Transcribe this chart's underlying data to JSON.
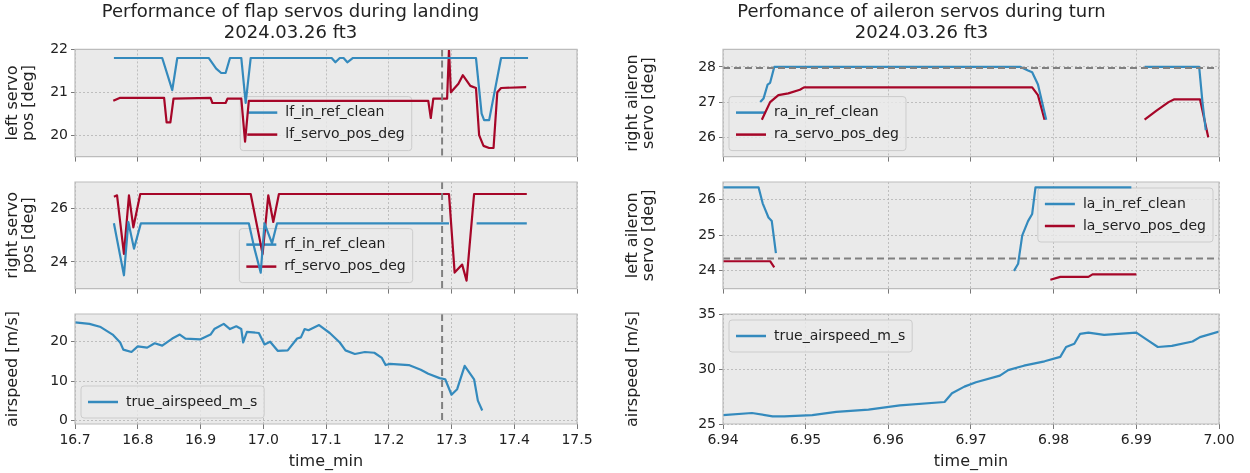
{
  "chart_data": [
    {
      "type": "line",
      "title": "Performance of flap servos during landing\n2024.03.26 ft3",
      "ylabel": "left servo\npos [deg]",
      "xlim": [
        16.7,
        17.5
      ],
      "xticks": [
        16.7,
        16.8,
        16.9,
        17,
        17.1,
        17.2,
        17.3,
        17.4,
        17.5
      ],
      "ylim": [
        19.5,
        22
      ],
      "yticks": [
        20,
        21,
        22
      ],
      "tick_labels": "y",
      "grid": true,
      "legend": "bottom",
      "ref_lines": [
        {
          "axis": "x",
          "value": 17.285,
          "color": "#808080",
          "line_style": "dashed"
        }
      ],
      "series": [
        {
          "name": "lf_in_ref_clean",
          "color": "#348abd",
          "x": [
            16.762,
            16.839,
            16.855,
            16.863,
            16.913,
            16.925,
            16.933,
            16.94,
            16.947,
            16.965,
            16.972,
            16.98,
            17.109,
            17.115,
            17.122,
            17.128,
            17.134,
            17.143,
            17.339,
            17.348,
            17.352,
            17.36,
            17.379,
            17.422
          ],
          "values": [
            21.8,
            21.8,
            21.05,
            21.8,
            21.8,
            21.55,
            21.45,
            21.45,
            21.8,
            21.8,
            20.75,
            21.8,
            21.8,
            21.7,
            21.8,
            21.8,
            21.7,
            21.8,
            21.8,
            20.5,
            20.35,
            20.35,
            21.8,
            21.8
          ]
        },
        {
          "name": "lf_servo_pos_deg",
          "color": "#a60628",
          "x": [
            16.761,
            16.772,
            16.842,
            16.846,
            16.852,
            16.857,
            16.916,
            16.919,
            16.94,
            16.943,
            16.965,
            16.971,
            16.977,
            17.263,
            17.267,
            17.271,
            17.293,
            17.296,
            17.299,
            17.311,
            17.318,
            17.33,
            17.339,
            17.344,
            17.351,
            17.36,
            17.367,
            17.373,
            17.379,
            17.419
          ],
          "values": [
            20.8,
            20.87,
            20.87,
            20.3,
            20.3,
            20.85,
            20.87,
            20.75,
            20.75,
            20.85,
            20.85,
            19.85,
            20.8,
            20.8,
            20.4,
            20.85,
            20.85,
            22,
            21.0,
            21.2,
            21.4,
            21.15,
            21.1,
            20.0,
            19.75,
            19.7,
            19.7,
            21.0,
            21.1,
            21.12
          ]
        }
      ]
    },
    {
      "type": "line",
      "title": "Perfomance of aileron servos during turn\n2024.03.26 ft3",
      "ylabel": "right aileron\nservo [deg]",
      "xlim": [
        6.94,
        7.0
      ],
      "xticks": [
        6.94,
        6.95,
        6.96,
        6.97,
        6.98,
        6.99,
        7
      ],
      "ylim": [
        25.45,
        28.5
      ],
      "yticks": [
        26,
        27,
        28
      ],
      "tick_labels": "y",
      "grid": true,
      "legend": "bottom left",
      "ref_lines": [
        {
          "axis": "y",
          "value": 27.97,
          "color": "#808080",
          "line_style": "dashed"
        }
      ],
      "series": [
        {
          "name": "ra_in_ref_clean",
          "color": "#348abd",
          "x": [
            6.9445,
            6.9449,
            6.9454,
            6.9457,
            6.9462,
            6.976,
            6.9769,
            6.9774,
            6.9781,
            6.9791,
            6.985,
            6.991,
            6.9976,
            6.998,
            6.9984
          ],
          "values": [
            27.0,
            27.1,
            27.5,
            27.55,
            28.0,
            28.0,
            27.9,
            27.85,
            27.5,
            26.5,
            null,
            28.0,
            28.0,
            27.0,
            26.2
          ]
        },
        {
          "name": "ra_servo_pos_deg",
          "color": "#a60628",
          "x": [
            6.9447,
            6.9457,
            6.9467,
            6.9479,
            6.9493,
            6.9498,
            6.9774,
            6.9781,
            6.9789,
            6.985,
            6.991,
            6.9924,
            6.9939,
            6.9946,
            6.9977,
            6.9987
          ],
          "values": [
            26.5,
            27.0,
            27.2,
            27.25,
            27.35,
            27.42,
            27.42,
            27.2,
            26.5,
            null,
            26.5,
            26.75,
            27.0,
            27.08,
            27.08,
            26.0
          ]
        }
      ]
    },
    {
      "type": "line",
      "ylabel": "right servo\npos [deg]",
      "xlim": [
        16.7,
        17.5
      ],
      "xticks": [
        16.7,
        16.8,
        16.9,
        17,
        17.1,
        17.2,
        17.3,
        17.4,
        17.5
      ],
      "ylim": [
        23,
        27
      ],
      "yticks": [
        24,
        26
      ],
      "tick_labels": "y",
      "grid": true,
      "legend": "bottom",
      "ref_lines": [
        {
          "axis": "x",
          "value": 17.285,
          "color": "#808080",
          "line_style": "dashed"
        }
      ],
      "series": [
        {
          "name": "rf_in_ref_clean",
          "color": "#348abd",
          "x": [
            16.762,
            16.778,
            16.785,
            16.794,
            16.805,
            16.977,
            16.986,
            16.996,
            17.002,
            17.014,
            17.022,
            17.296,
            17.324,
            17.34,
            17.42
          ],
          "values": [
            25.45,
            23.5,
            25.5,
            24.5,
            25.45,
            25.45,
            24.5,
            23.6,
            25.45,
            24.7,
            25.45,
            25.45,
            null,
            25.45,
            25.45
          ]
        },
        {
          "name": "rf_servo_pos_deg",
          "color": "#a60628",
          "x": [
            16.762,
            16.767,
            16.778,
            16.786,
            16.793,
            16.804,
            16.98,
            16.999,
            17.008,
            17.016,
            17.025,
            17.296,
            17.305,
            17.317,
            17.324,
            17.336,
            17.42
          ],
          "values": [
            26.45,
            26.5,
            24.3,
            26.5,
            25.3,
            26.55,
            26.55,
            24.3,
            26.5,
            25.5,
            26.55,
            26.55,
            23.6,
            23.9,
            23.3,
            26.55,
            26.55
          ]
        }
      ]
    },
    {
      "type": "line",
      "ylabel": "left aileron\nservo [deg]",
      "xlim": [
        6.94,
        7.0
      ],
      "xticks": [
        6.94,
        6.95,
        6.96,
        6.97,
        6.98,
        6.99,
        7
      ],
      "ylim": [
        23.5,
        26.5
      ],
      "yticks": [
        24,
        25,
        26
      ],
      "tick_labels": "y",
      "grid": true,
      "legend": "top right",
      "ref_lines": [
        {
          "axis": "y",
          "value": 24.35,
          "color": "#808080",
          "line_style": "dashed"
        }
      ],
      "series": [
        {
          "name": "la_in_ref_clean",
          "color": "#348abd",
          "x": [
            6.94,
            6.9443,
            6.9448,
            6.9455,
            6.9459,
            6.9464,
            6.96,
            6.9752,
            6.9757,
            6.9762,
            6.9769,
            6.9774,
            6.9778,
            6.9894
          ],
          "values": [
            26.35,
            26.35,
            25.9,
            25.5,
            25.4,
            24.5,
            null,
            24.0,
            24.2,
            25.0,
            25.4,
            25.6,
            26.35,
            26.35
          ]
        },
        {
          "name": "la_servo_pos_deg",
          "color": "#a60628",
          "x": [
            6.94,
            6.9457,
            6.9462,
            6.96,
            6.9796,
            6.9808,
            6.9842,
            6.9847,
            6.99
          ],
          "values": [
            24.27,
            24.27,
            24.1,
            null,
            23.75,
            23.83,
            23.83,
            23.9,
            23.9
          ]
        }
      ]
    },
    {
      "type": "line",
      "xlabel": "time_min",
      "ylabel": "airspeed [m/s]",
      "xlim": [
        16.7,
        17.5
      ],
      "xticks": [
        16.7,
        16.8,
        16.9,
        {
          "value": 17,
          "label": "17.0"
        },
        17.1,
        17.2,
        17.3,
        17.4,
        17.5
      ],
      "ylim": [
        -0.8,
        27
      ],
      "yticks": [
        0,
        10,
        20
      ],
      "grid": true,
      "legend": "bottom left",
      "ref_lines": [
        {
          "axis": "x",
          "value": 17.285,
          "color": "#808080",
          "line_style": "dashed"
        }
      ],
      "series": [
        {
          "name": "true_airspeed_m_s",
          "color": "#348abd",
          "x": [
            16.7,
            16.723,
            16.741,
            16.76,
            16.772,
            16.777,
            16.79,
            16.8,
            16.815,
            16.827,
            16.839,
            16.855,
            16.867,
            16.876,
            16.9,
            16.916,
            16.922,
            16.937,
            16.947,
            16.957,
            16.965,
            16.968,
            16.974,
            16.993,
            17.002,
            17.011,
            17.023,
            17.039,
            17.054,
            17.06,
            17.066,
            17.072,
            17.089,
            17.106,
            17.122,
            17.131,
            17.146,
            17.162,
            17.177,
            17.189,
            17.195,
            17.202,
            17.232,
            17.251,
            17.263,
            17.281,
            17.29,
            17.3,
            17.309,
            17.321,
            17.336,
            17.342,
            17.349
          ],
          "values": [
            24.9,
            24.5,
            23.7,
            21.8,
            19.8,
            18.0,
            17.4,
            18.8,
            18.5,
            19.6,
            19.0,
            20.8,
            21.8,
            20.8,
            20.6,
            21.8,
            23.2,
            24.5,
            23.2,
            23.9,
            23.2,
            19.8,
            22.5,
            22.2,
            19.3,
            20.0,
            17.7,
            17.8,
            20.8,
            21.1,
            23.2,
            22.9,
            24.2,
            22.2,
            19.8,
            17.8,
            16.9,
            17.4,
            17.2,
            15.9,
            14.1,
            14.4,
            14.1,
            12.9,
            11.9,
            10.8,
            10.5,
            6.6,
            8.0,
            13.9,
            10.5,
            5.1,
            2.6
          ]
        }
      ]
    },
    {
      "type": "line",
      "xlabel": "time_min",
      "ylabel": "airspeed [m/s]",
      "xlim": [
        6.94,
        7.0
      ],
      "xticks": [
        6.94,
        6.95,
        6.96,
        6.97,
        6.98,
        6.99,
        {
          "value": 7,
          "label": "7.00"
        }
      ],
      "ylim": [
        25,
        35
      ],
      "yticks": [
        25,
        30,
        35
      ],
      "grid": true,
      "legend": "top left",
      "series": [
        {
          "name": "true_airspeed_m_s",
          "color": "#348abd",
          "x": [
            6.94,
            6.9435,
            6.946,
            6.9474,
            6.9508,
            6.9537,
            6.9576,
            6.9614,
            6.9668,
            6.9677,
            6.9692,
            6.9706,
            6.9735,
            6.9745,
            6.9764,
            6.9789,
            6.9808,
            6.9815,
            6.9825,
            6.9832,
            6.9842,
            6.9861,
            6.99,
            6.9914,
            6.9926,
            6.9943,
            6.9968,
            6.9977,
            7.0
          ],
          "values": [
            25.8,
            26.0,
            25.7,
            25.7,
            25.8,
            26.1,
            26.3,
            26.7,
            27.0,
            27.8,
            28.4,
            28.8,
            29.4,
            29.9,
            30.3,
            30.7,
            31.1,
            32.0,
            32.3,
            33.2,
            33.3,
            33.1,
            33.3,
            32.6,
            32.0,
            32.1,
            32.5,
            32.9,
            33.4
          ]
        }
      ]
    }
  ]
}
